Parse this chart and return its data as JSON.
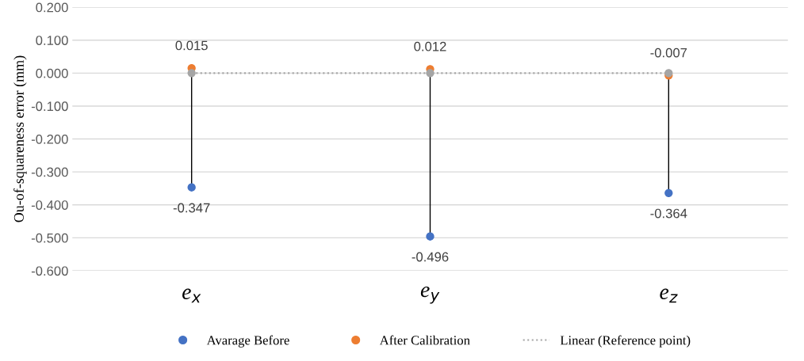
{
  "chart_data": {
    "type": "scatter",
    "ylabel": "Ou-of-squareness error (mm)",
    "categories": [
      "e$_{x}$",
      "e$_{y}$",
      "e$_{z}$"
    ],
    "series": [
      {
        "name": "Avarage Before",
        "type": "lollipop",
        "color": "#4472c4",
        "values": [
          -0.347,
          -0.496,
          -0.364
        ],
        "value_labels": [
          "-0.347",
          "-0.496",
          "-0.364"
        ]
      },
      {
        "name": "After Calibration",
        "color": "#ed7d31",
        "values": [
          0.015,
          0.012,
          -0.007
        ],
        "value_labels": [
          "0.015",
          "0.012",
          "-0.007"
        ]
      },
      {
        "color": "#a5a5a5",
        "values": [
          0,
          0,
          0
        ]
      },
      {
        "name": "Linear (Reference point)",
        "type": "line",
        "color": "#a5a5a5",
        "line_style": "dotted",
        "marker": "none",
        "values": [
          0,
          0,
          0
        ]
      }
    ],
    "ylim": [
      -0.6,
      0.2
    ],
    "yticks": [
      {
        "value": -0.6,
        "label": "-0.600"
      },
      {
        "value": -0.5,
        "label": "-0.500"
      },
      {
        "value": -0.4,
        "label": "-0.400"
      },
      {
        "value": -0.3,
        "label": "-0.300"
      },
      {
        "value": -0.2,
        "label": "-0.200"
      },
      {
        "value": -0.1,
        "label": "-0.100"
      },
      {
        "value": 0,
        "label": "0.000"
      },
      {
        "value": 0.1,
        "label": "0.100"
      },
      {
        "value": 0.2,
        "label": "0.200"
      }
    ],
    "grid": "y",
    "legend": "bottom",
    "marker": "circle"
  }
}
